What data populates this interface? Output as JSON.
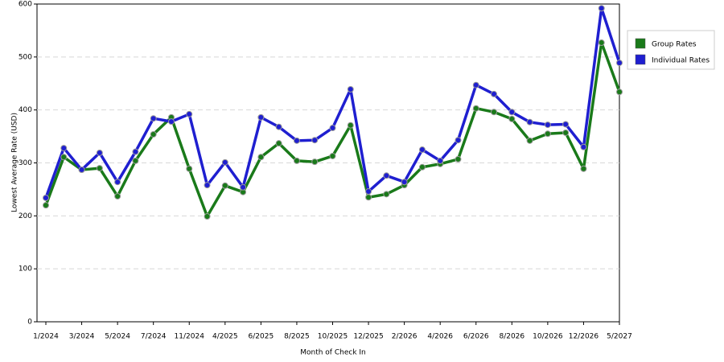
{
  "chart_data": {
    "type": "line",
    "x_label": "Month of Check In",
    "y_label": "Lowest Average Rate (USD)",
    "categories": [
      "1/2024",
      null,
      "3/2024",
      null,
      "5/2024",
      null,
      "7/2024",
      null,
      "11/2024",
      null,
      "4/2025",
      null,
      "6/2025",
      null,
      "8/2025",
      null,
      "10/2025",
      null,
      "12/2025",
      null,
      "2/2026",
      null,
      "4/2026",
      null,
      "6/2026",
      null,
      "8/2026",
      null,
      "10/2026",
      null,
      "12/2026",
      null,
      "5/2027"
    ],
    "series": [
      {
        "name": "Group Rates",
        "color": "#1a7a1a",
        "values": [
          220,
          311,
          287,
          290,
          237,
          304,
          354,
          386,
          289,
          199,
          257,
          245,
          311,
          337,
          304,
          302,
          313,
          371,
          235,
          241,
          258,
          292,
          298,
          307,
          403,
          396,
          383,
          342,
          355,
          357,
          289,
          527,
          434
        ]
      },
      {
        "name": "Individual Rates",
        "color": "#1f1fd0",
        "values": [
          234,
          328,
          287,
          319,
          264,
          321,
          384,
          378,
          392,
          258,
          301,
          254,
          386,
          368,
          342,
          343,
          366,
          439,
          246,
          276,
          264,
          325,
          304,
          343,
          447,
          430,
          396,
          377,
          372,
          373,
          330,
          592,
          489
        ]
      }
    ],
    "ylim": [
      0,
      600
    ],
    "yticks": [
      0,
      100,
      200,
      300,
      400,
      500,
      600
    ],
    "grid": true,
    "legend": "right"
  }
}
